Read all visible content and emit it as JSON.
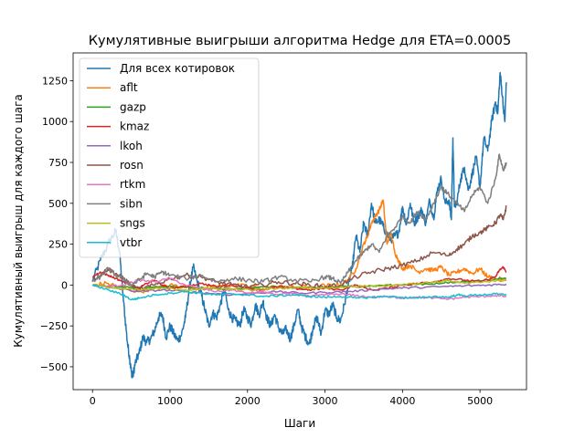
{
  "chart_data": {
    "type": "line",
    "title": "Кумулятивные выигрыши алгоритма Hedge для ETA=0.0005",
    "xlabel": "Шаги",
    "ylabel": "Кумулятивный выигрыш для каждого шага",
    "xlim": [
      -250,
      5600
    ],
    "ylim": [
      -640,
      1420
    ],
    "xticks": [
      0,
      1000,
      2000,
      3000,
      4000,
      5000
    ],
    "yticks": [
      -500,
      -250,
      0,
      250,
      500,
      750,
      1000,
      1250
    ],
    "grid": false,
    "legend_position": "top-left",
    "series": [
      {
        "name": "Для всех котировок",
        "color": "#1f77b4",
        "x": [
          0,
          100,
          200,
          300,
          350,
          400,
          450,
          480,
          500,
          520,
          550,
          600,
          650,
          700,
          750,
          800,
          850,
          900,
          950,
          1000,
          1050,
          1100,
          1150,
          1200,
          1250,
          1300,
          1350,
          1400,
          1450,
          1500,
          1550,
          1600,
          1650,
          1700,
          1750,
          1800,
          1850,
          1900,
          1950,
          2000,
          2050,
          2100,
          2150,
          2200,
          2250,
          2300,
          2350,
          2400,
          2450,
          2500,
          2550,
          2600,
          2650,
          2700,
          2750,
          2800,
          2850,
          2900,
          2950,
          3000,
          3050,
          3100,
          3150,
          3200,
          3250,
          3300,
          3350,
          3400,
          3450,
          3500,
          3550,
          3600,
          3650,
          3700,
          3750,
          3800,
          3850,
          3900,
          3950,
          4000,
          4050,
          4100,
          4150,
          4200,
          4250,
          4300,
          4350,
          4400,
          4450,
          4500,
          4550,
          4600,
          4630,
          4650,
          4670,
          4700,
          4750,
          4800,
          4850,
          4900,
          4950,
          5000,
          5050,
          5100,
          5150,
          5200,
          5230,
          5260,
          5290,
          5320,
          5340
        ],
        "values": [
          20,
          150,
          250,
          330,
          200,
          -100,
          -350,
          -450,
          -530,
          -560,
          -480,
          -420,
          -320,
          -350,
          -330,
          -280,
          -200,
          -180,
          -320,
          -250,
          -300,
          -340,
          -300,
          -200,
          -20,
          110,
          20,
          -50,
          -150,
          -250,
          -170,
          -200,
          -120,
          -20,
          -150,
          -200,
          -220,
          -250,
          -150,
          -200,
          -240,
          -120,
          -180,
          -100,
          -200,
          -250,
          -180,
          -260,
          -300,
          -270,
          -330,
          -250,
          -150,
          -260,
          -320,
          -360,
          -250,
          -200,
          -300,
          -150,
          -180,
          -120,
          -200,
          -220,
          -120,
          0,
          100,
          300,
          200,
          380,
          300,
          500,
          380,
          400,
          360,
          310,
          280,
          300,
          320,
          480,
          370,
          500,
          380,
          420,
          460,
          380,
          520,
          410,
          580,
          650,
          500,
          520,
          400,
          900,
          480,
          500,
          650,
          720,
          580,
          680,
          780,
          600,
          900,
          820,
          1000,
          1120,
          1050,
          1300,
          1150,
          1000,
          1240
        ]
      },
      {
        "name": "aflt",
        "color": "#ff7f0e",
        "x": [
          0,
          200,
          400,
          600,
          800,
          1000,
          1200,
          1400,
          1600,
          1800,
          2000,
          2200,
          2400,
          2600,
          2800,
          3000,
          3200,
          3300,
          3400,
          3500,
          3550,
          3600,
          3650,
          3700,
          3750,
          3800,
          3850,
          3900,
          3950,
          4000,
          4100,
          4200,
          4300,
          4400,
          4500,
          4600,
          4700,
          4800,
          4900,
          5000,
          5100,
          5200,
          5340
        ],
        "values": [
          0,
          10,
          -20,
          -40,
          -20,
          0,
          -10,
          -20,
          -10,
          0,
          -10,
          -20,
          -10,
          -15,
          -10,
          -5,
          0,
          30,
          100,
          250,
          300,
          380,
          420,
          460,
          520,
          250,
          320,
          200,
          150,
          100,
          120,
          80,
          100,
          90,
          110,
          60,
          80,
          100,
          70,
          100,
          50,
          40,
          30
        ]
      },
      {
        "name": "gazp",
        "color": "#2ca02c",
        "x": [
          0,
          300,
          600,
          900,
          1200,
          1500,
          1800,
          2100,
          2400,
          2700,
          3000,
          3300,
          3600,
          3900,
          4200,
          4500,
          4800,
          5100,
          5340
        ],
        "values": [
          0,
          -10,
          -20,
          -10,
          -15,
          -20,
          -25,
          -15,
          -10,
          -20,
          -15,
          -10,
          -5,
          0,
          5,
          10,
          20,
          30,
          40
        ]
      },
      {
        "name": "kmaz",
        "color": "#d62728",
        "x": [
          0,
          100,
          200,
          300,
          400,
          500,
          600,
          700,
          800,
          900,
          1000,
          1200,
          1400,
          1600,
          1800,
          2000,
          2200,
          2400,
          2600,
          2800,
          3000,
          3200,
          3400,
          3600,
          3800,
          4000,
          4200,
          4400,
          4600,
          4800,
          5000,
          5200,
          5250,
          5300,
          5340
        ],
        "values": [
          50,
          80,
          60,
          40,
          20,
          0,
          -20,
          10,
          30,
          0,
          -20,
          -10,
          10,
          -10,
          0,
          -20,
          -30,
          -10,
          -20,
          -30,
          -20,
          -30,
          0,
          -30,
          -20,
          0,
          10,
          20,
          40,
          30,
          20,
          50,
          90,
          110,
          80
        ]
      },
      {
        "name": "lkoh",
        "color": "#9467bd",
        "x": [
          0,
          300,
          600,
          900,
          1200,
          1500,
          1800,
          2100,
          2400,
          2700,
          3000,
          3300,
          3600,
          3900,
          4200,
          4500,
          4800,
          5100,
          5340
        ],
        "values": [
          0,
          -20,
          -40,
          -30,
          -40,
          -50,
          -60,
          -50,
          -40,
          -50,
          -45,
          -40,
          -30,
          -20,
          -15,
          -10,
          -5,
          0,
          5
        ]
      },
      {
        "name": "rosn",
        "color": "#8c564b",
        "x": [
          0,
          100,
          200,
          300,
          400,
          500,
          600,
          800,
          1000,
          1200,
          1400,
          1600,
          1800,
          2000,
          2200,
          2400,
          2600,
          2800,
          3000,
          3200,
          3400,
          3600,
          3800,
          4000,
          4200,
          4400,
          4600,
          4700,
          4800,
          4900,
          5000,
          5100,
          5200,
          5260,
          5300,
          5340
        ],
        "values": [
          30,
          60,
          100,
          70,
          40,
          0,
          -30,
          0,
          40,
          60,
          50,
          20,
          0,
          -10,
          0,
          20,
          10,
          0,
          -10,
          0,
          50,
          80,
          100,
          120,
          150,
          200,
          180,
          220,
          250,
          300,
          320,
          350,
          380,
          430,
          400,
          480
        ]
      },
      {
        "name": "rtkm",
        "color": "#e377c2",
        "x": [
          0,
          200,
          400,
          600,
          800,
          1000,
          1200,
          1400,
          1600,
          1800,
          2000,
          2200,
          2400,
          2600,
          2800,
          3000,
          3200,
          3400,
          3600,
          3800,
          4000,
          4200,
          4400,
          4600,
          4800,
          5000,
          5200,
          5340
        ],
        "values": [
          0,
          -10,
          0,
          30,
          20,
          40,
          0,
          -20,
          -40,
          -30,
          -50,
          -40,
          -60,
          -50,
          -70,
          -60,
          -55,
          -65,
          -75,
          -70,
          -80,
          -75,
          -80,
          -85,
          -75,
          -70,
          -65,
          -70
        ]
      },
      {
        "name": "sibn",
        "color": "#7f7f7f",
        "x": [
          0,
          100,
          200,
          300,
          400,
          500,
          600,
          700,
          800,
          900,
          1000,
          1200,
          1400,
          1600,
          1800,
          2000,
          2200,
          2400,
          2600,
          2800,
          3000,
          3100,
          3200,
          3300,
          3400,
          3500,
          3600,
          3700,
          3800,
          3900,
          4000,
          4100,
          4200,
          4300,
          4400,
          4500,
          4600,
          4700,
          4800,
          4900,
          5000,
          5100,
          5200,
          5250,
          5300,
          5340
        ],
        "values": [
          20,
          50,
          100,
          60,
          40,
          0,
          30,
          70,
          50,
          80,
          60,
          40,
          60,
          20,
          40,
          30,
          20,
          50,
          30,
          20,
          50,
          40,
          10,
          80,
          150,
          200,
          250,
          200,
          300,
          350,
          420,
          380,
          450,
          400,
          500,
          600,
          550,
          500,
          450,
          550,
          600,
          500,
          650,
          800,
          700,
          750
        ]
      },
      {
        "name": "sngs",
        "color": "#bcbd22",
        "x": [
          0,
          300,
          600,
          900,
          1200,
          1500,
          1800,
          2100,
          2400,
          2700,
          3000,
          3300,
          3600,
          3900,
          4200,
          4500,
          4600,
          4800,
          5100,
          5340
        ],
        "values": [
          0,
          -20,
          -30,
          -20,
          -30,
          -20,
          -25,
          -30,
          -20,
          -15,
          -20,
          -10,
          -5,
          0,
          10,
          20,
          30,
          10,
          20,
          30
        ]
      },
      {
        "name": "vtbr",
        "color": "#17becf",
        "x": [
          0,
          200,
          400,
          500,
          600,
          800,
          1000,
          1200,
          1400,
          1600,
          1800,
          2000,
          2200,
          2400,
          2600,
          2800,
          3000,
          3200,
          3400,
          3600,
          3800,
          4000,
          4200,
          4400,
          4600,
          4700,
          4800,
          5000,
          5200,
          5340
        ],
        "values": [
          0,
          -30,
          -60,
          -90,
          -80,
          -60,
          -50,
          -40,
          -50,
          -60,
          -55,
          -60,
          -70,
          -65,
          -60,
          -70,
          -75,
          -70,
          -80,
          -75,
          -70,
          -75,
          -80,
          -70,
          -75,
          -60,
          -65,
          -60,
          -55,
          -60
        ]
      }
    ]
  }
}
